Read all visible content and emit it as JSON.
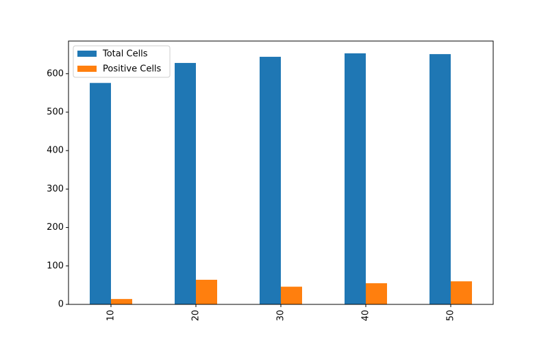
{
  "chart_data": {
    "type": "bar",
    "title": "",
    "xlabel": "",
    "ylabel": "",
    "categories": [
      "10",
      "20",
      "30",
      "40",
      "50"
    ],
    "series": [
      {
        "name": "Total Cells",
        "color": "#1f77b4",
        "values": [
          576,
          628,
          644,
          653,
          651
        ]
      },
      {
        "name": "Positive Cells",
        "color": "#ff7f0e",
        "values": [
          14,
          64,
          46,
          55,
          60
        ]
      }
    ],
    "ylim": [
      0,
      685
    ],
    "yticks": [
      0,
      100,
      200,
      300,
      400,
      500,
      600
    ],
    "xtick_rotation": "vertical",
    "grid": false,
    "legend_position": "top-left"
  }
}
